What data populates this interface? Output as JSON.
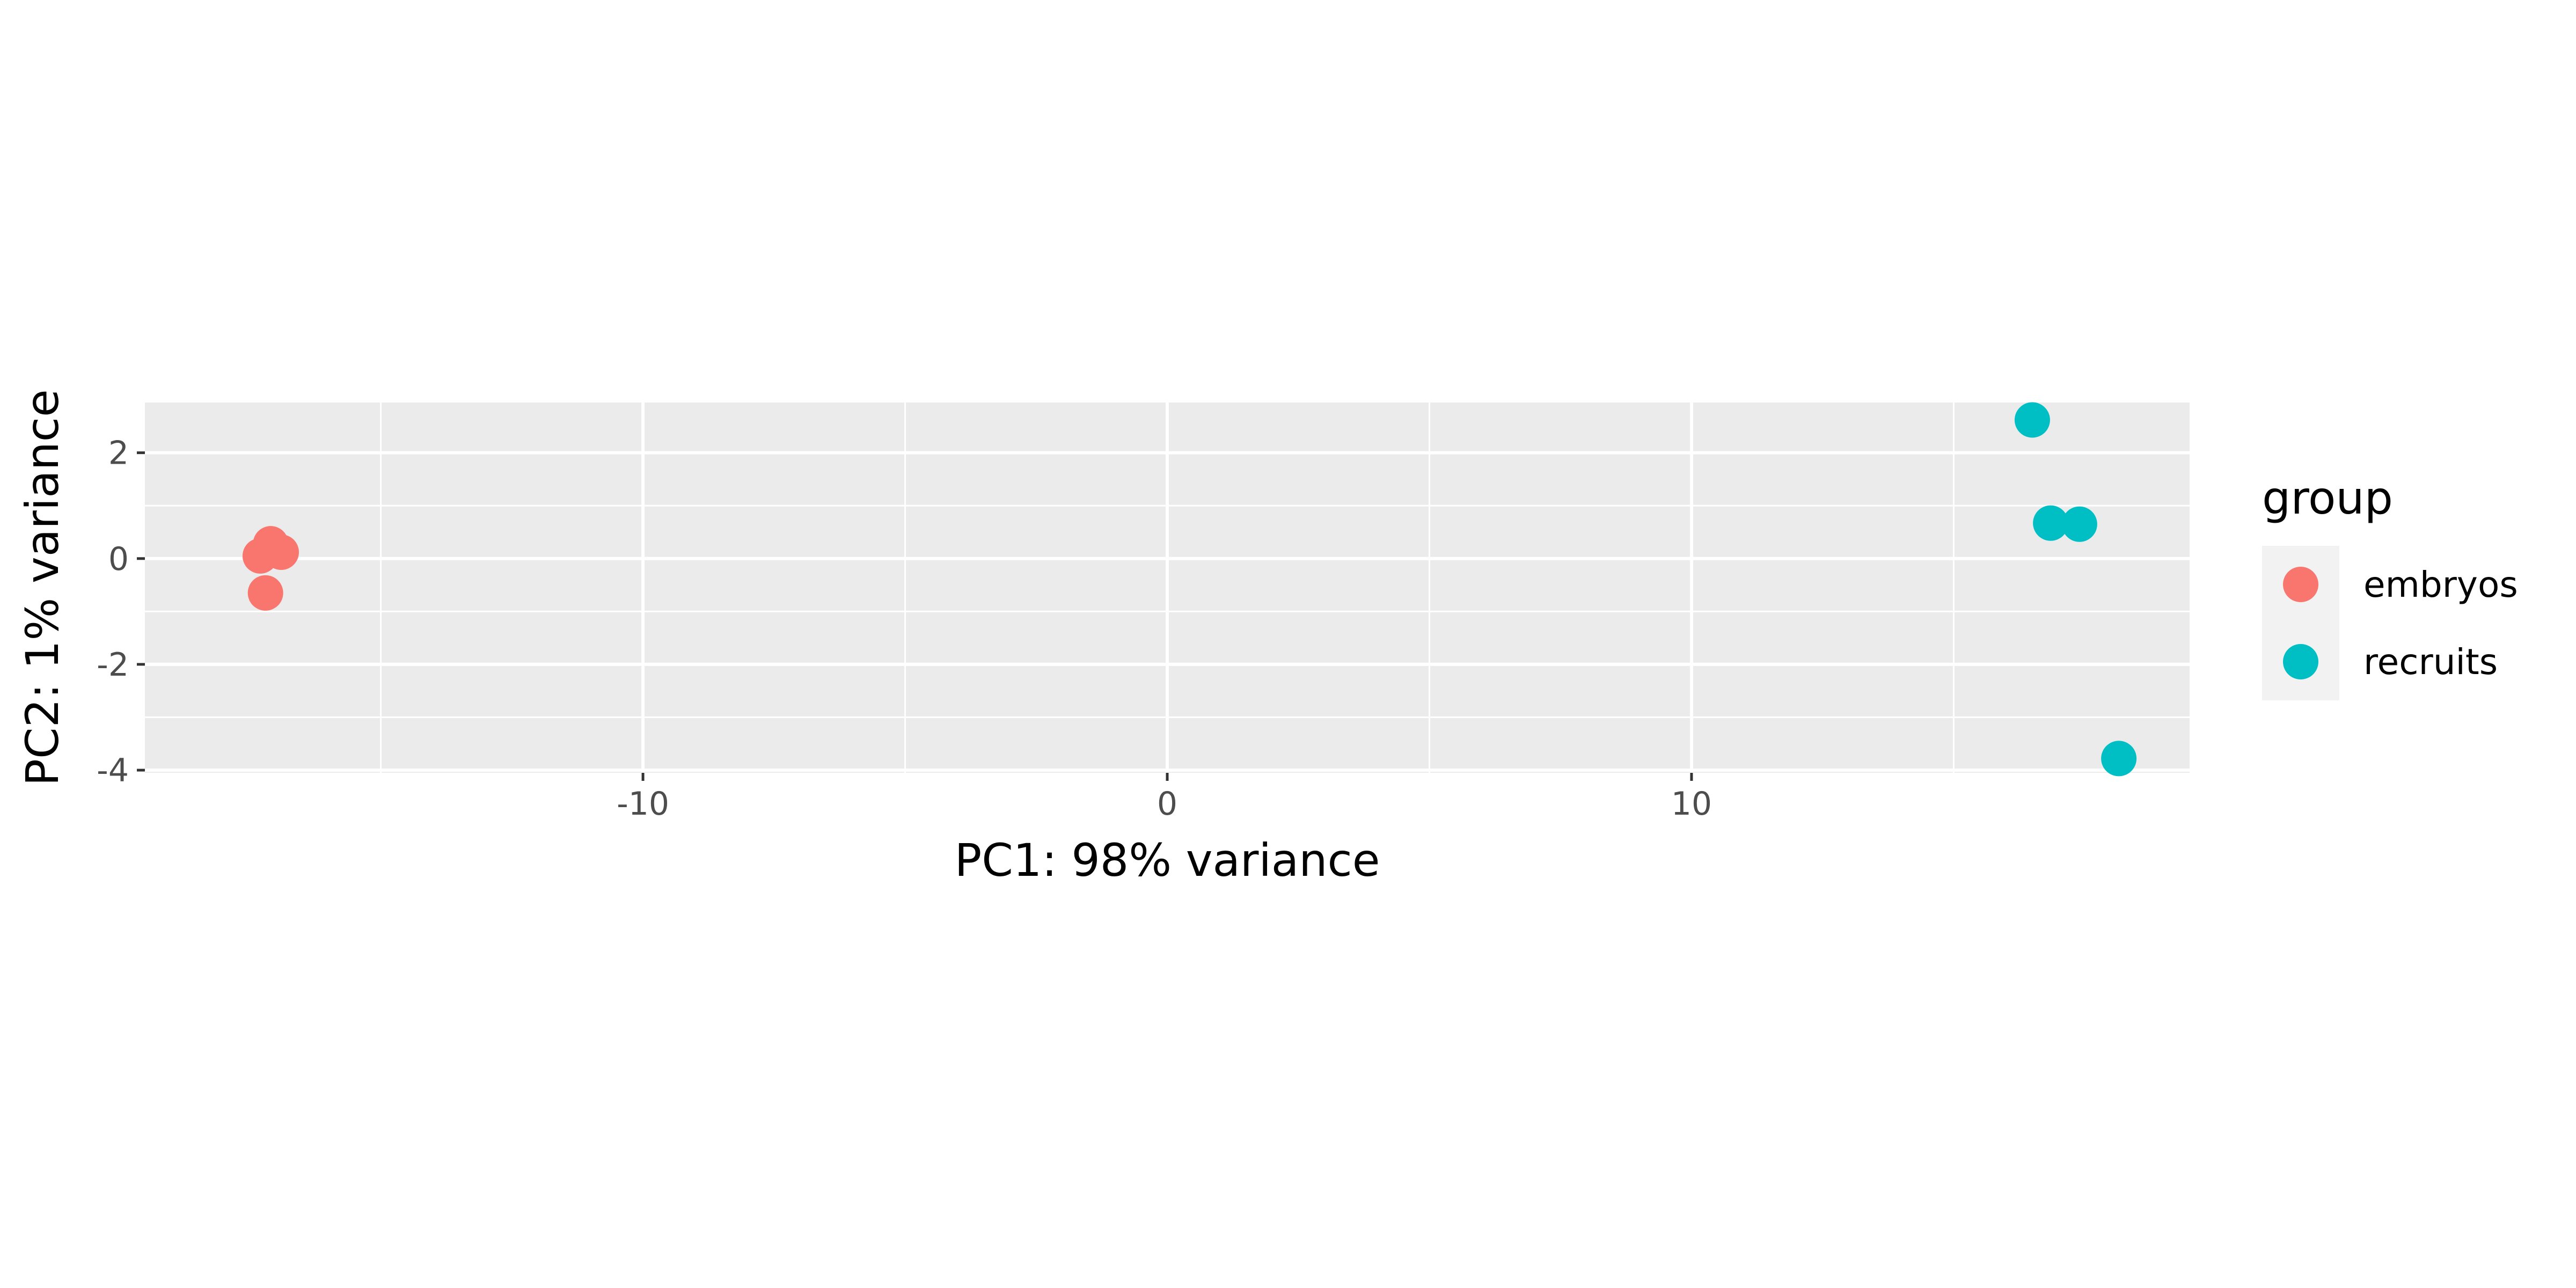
{
  "chart_data": {
    "type": "scatter",
    "xlabel": "PC1: 98% variance",
    "ylabel": "PC2: 1% variance",
    "xlim": [
      -19.5,
      19.5
    ],
    "ylim": [
      -4.05,
      2.95
    ],
    "x_ticks": [
      -10,
      0,
      10
    ],
    "x_tick_labels": [
      "-10",
      "0",
      "10"
    ],
    "y_ticks": [
      -4,
      -2,
      0,
      2
    ],
    "y_tick_labels": [
      "-4",
      "-2",
      "0",
      "2"
    ],
    "grid": true,
    "legend": {
      "title": "group",
      "placement": "right"
    },
    "series": [
      {
        "name": "embryos",
        "color": "#F8766D",
        "points": [
          {
            "x": -17.3,
            "y": 0.05
          },
          {
            "x": -16.9,
            "y": 0.12
          },
          {
            "x": -17.1,
            "y": 0.28
          },
          {
            "x": -17.2,
            "y": -0.65
          }
        ]
      },
      {
        "name": "recruits",
        "color": "#00BFC4",
        "points": [
          {
            "x": 16.5,
            "y": 2.62
          },
          {
            "x": 16.85,
            "y": 0.67
          },
          {
            "x": 17.4,
            "y": 0.65
          },
          {
            "x": 18.15,
            "y": -3.78
          }
        ]
      }
    ]
  }
}
